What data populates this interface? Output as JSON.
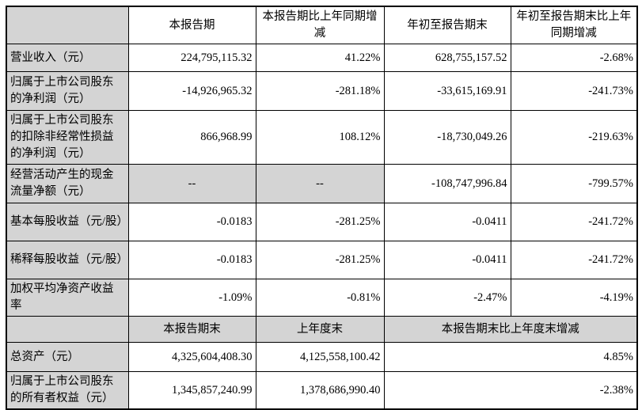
{
  "colors": {
    "cell_shade": "#d4d4d4",
    "border": "#000000",
    "background": "#ffffff",
    "text": "#000000"
  },
  "table": {
    "header_row_1": [
      "",
      "本报告期",
      "本报告期比上年同期增减",
      "年初至报告期末",
      "年初至报告期末比上年同期增减"
    ],
    "body_rows": [
      {
        "label": "营业收入（元）",
        "values": [
          "224,795,115.32",
          "41.22%",
          "628,755,157.52",
          "-2.68%"
        ],
        "dash_cols": []
      },
      {
        "label": "归属于上市公司股东的净利润（元）",
        "values": [
          "-14,926,965.32",
          "-281.18%",
          "-33,615,169.91",
          "-241.73%"
        ],
        "dash_cols": []
      },
      {
        "label": "归属于上市公司股东的扣除非经常性损益的净利润（元）",
        "values": [
          "866,968.99",
          "108.12%",
          "-18,730,049.26",
          "-219.63%"
        ],
        "dash_cols": []
      },
      {
        "label": "经营活动产生的现金流量净额（元）",
        "values": [
          "--",
          "--",
          "-108,747,996.84",
          "-799.57%"
        ],
        "dash_cols": [
          0,
          1
        ]
      },
      {
        "label": "基本每股收益（元/股）",
        "values": [
          "-0.0183",
          "-281.25%",
          "-0.0411",
          "-241.72%"
        ],
        "dash_cols": []
      },
      {
        "label": "稀释每股收益（元/股）",
        "values": [
          "-0.0183",
          "-281.25%",
          "-0.0411",
          "-241.72%"
        ],
        "dash_cols": []
      },
      {
        "label": "加权平均净资产收益率",
        "values": [
          "-1.09%",
          "-0.81%",
          "-2.47%",
          "-4.19%"
        ],
        "dash_cols": []
      }
    ],
    "header_row_2": [
      "",
      "本报告期末",
      "上年度末",
      "本报告期末比上年度末增减"
    ],
    "bottom_rows": [
      {
        "label": "总资产（元）",
        "values": [
          "4,325,604,408.30",
          "4,125,558,100.42",
          "4.85%"
        ]
      },
      {
        "label": "归属于上市公司股东的所有者权益（元）",
        "values": [
          "1,345,857,240.99",
          "1,378,686,990.40",
          "-2.38%"
        ]
      }
    ]
  }
}
